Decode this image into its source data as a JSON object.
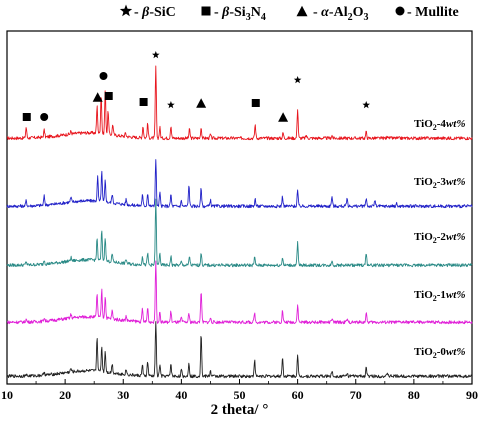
{
  "chart_data": {
    "type": "line",
    "xlabel": "2 theta/ °",
    "ylabel": "",
    "xlim": [
      10,
      90
    ],
    "x_ticks": [
      10,
      20,
      30,
      40,
      50,
      60,
      70,
      80,
      90
    ],
    "grid": false,
    "legend_position": "top",
    "legend": [
      {
        "symbol": "star",
        "prefix": "-",
        "greek": "β",
        "name": "-SiC"
      },
      {
        "symbol": "square",
        "prefix": "-",
        "greek": "β",
        "name": "-Si",
        "sub1": "3",
        "name2": "N",
        "sub2": "4"
      },
      {
        "symbol": "triangle",
        "prefix": "-",
        "greek": "α",
        "name": "-Al",
        "sub1": "2",
        "name2": "O",
        "sub2": "3"
      },
      {
        "symbol": "circle",
        "prefix": "-",
        "name": "Mullite"
      }
    ],
    "series": [
      {
        "name": "TiO2-4wt%",
        "label_main": "TiO",
        "label_sub": "2",
        "label_rest": "-4",
        "label_unit": "wt%",
        "color": "#e8161e",
        "baseline": 0.2,
        "noise": 0.35,
        "peaks": [
          [
            13.3,
            1.2
          ],
          [
            16.4,
            0.8
          ],
          [
            21.0,
            0.3
          ],
          [
            25.5,
            3.0
          ],
          [
            26.2,
            4.4
          ],
          [
            26.9,
            4.9
          ],
          [
            27.4,
            2.6
          ],
          [
            28.2,
            1.2
          ],
          [
            30.4,
            0.4
          ],
          [
            33.4,
            1.3
          ],
          [
            34.2,
            1.6
          ],
          [
            35.6,
            8.0
          ],
          [
            36.3,
            1.2
          ],
          [
            38.2,
            1.4
          ],
          [
            41.4,
            1.0
          ],
          [
            43.4,
            1.2
          ],
          [
            45.0,
            0.4
          ],
          [
            52.7,
            1.5
          ],
          [
            57.5,
            0.6
          ],
          [
            60.0,
            3.3
          ],
          [
            61.5,
            0.3
          ],
          [
            65.9,
            0.3
          ],
          [
            71.8,
            0.7
          ],
          [
            75.5,
            0.3
          ]
        ]
      },
      {
        "name": "TiO2-3wt%",
        "label_main": "TiO",
        "label_sub": "2",
        "label_rest": "-3",
        "label_unit": "wt%",
        "color": "#2121c8",
        "baseline": 0.2,
        "noise": 0.35,
        "peaks": [
          [
            13.3,
            0.6
          ],
          [
            16.4,
            1.0
          ],
          [
            21.0,
            0.5
          ],
          [
            25.6,
            2.7
          ],
          [
            26.3,
            3.3
          ],
          [
            26.9,
            2.4
          ],
          [
            28.1,
            1.0
          ],
          [
            30.5,
            0.6
          ],
          [
            33.3,
            1.2
          ],
          [
            34.2,
            1.5
          ],
          [
            35.6,
            5.2
          ],
          [
            36.3,
            1.5
          ],
          [
            38.2,
            1.3
          ],
          [
            40.0,
            0.6
          ],
          [
            41.3,
            2.4
          ],
          [
            43.4,
            2.0
          ],
          [
            45.0,
            0.7
          ],
          [
            52.7,
            0.8
          ],
          [
            57.4,
            1.1
          ],
          [
            60.0,
            1.8
          ],
          [
            65.9,
            1.1
          ],
          [
            68.5,
            0.9
          ],
          [
            71.8,
            0.9
          ],
          [
            73.3,
            0.7
          ],
          [
            77.0,
            0.3
          ]
        ]
      },
      {
        "name": "TiO2-2wt%",
        "label_main": "TiO",
        "label_sub": "2",
        "label_rest": "-2",
        "label_unit": "wt%",
        "color": "#2a8a86",
        "baseline": 0.2,
        "noise": 0.35,
        "peaks": [
          [
            13.3,
            0.4
          ],
          [
            16.4,
            0.5
          ],
          [
            21.0,
            0.4
          ],
          [
            25.5,
            2.4
          ],
          [
            26.3,
            3.4
          ],
          [
            26.9,
            2.7
          ],
          [
            28.1,
            0.9
          ],
          [
            30.5,
            0.5
          ],
          [
            33.3,
            1.0
          ],
          [
            34.2,
            1.3
          ],
          [
            35.6,
            7.4
          ],
          [
            36.3,
            1.3
          ],
          [
            38.2,
            1.0
          ],
          [
            40.0,
            0.4
          ],
          [
            41.4,
            1.0
          ],
          [
            43.4,
            1.4
          ],
          [
            52.6,
            0.9
          ],
          [
            57.4,
            0.9
          ],
          [
            60.0,
            2.5
          ],
          [
            65.9,
            0.5
          ],
          [
            71.8,
            1.4
          ]
        ]
      },
      {
        "name": "TiO2-1wt%",
        "label_main": "TiO",
        "label_sub": "2",
        "label_rest": "-1",
        "label_unit": "wt%",
        "color": "#e020d8",
        "baseline": 0.2,
        "noise": 0.35,
        "peaks": [
          [
            13.3,
            0.3
          ],
          [
            16.4,
            0.4
          ],
          [
            21.0,
            0.4
          ],
          [
            25.5,
            2.6
          ],
          [
            26.3,
            3.1
          ],
          [
            26.9,
            2.4
          ],
          [
            28.1,
            0.9
          ],
          [
            30.5,
            0.5
          ],
          [
            33.3,
            1.4
          ],
          [
            34.2,
            1.6
          ],
          [
            35.6,
            6.9
          ],
          [
            36.3,
            1.1
          ],
          [
            38.2,
            1.2
          ],
          [
            40.0,
            0.5
          ],
          [
            41.3,
            1.0
          ],
          [
            43.4,
            3.6
          ],
          [
            45.0,
            0.5
          ],
          [
            52.6,
            1.0
          ],
          [
            57.4,
            1.3
          ],
          [
            60.0,
            2.0
          ],
          [
            65.9,
            0.4
          ],
          [
            68.5,
            0.3
          ],
          [
            71.8,
            1.0
          ]
        ]
      },
      {
        "name": "TiO2-0wt%",
        "label_main": "TiO",
        "label_sub": "2",
        "label_rest": "-0",
        "label_unit": "wt%",
        "color": "#202020",
        "baseline": 0.2,
        "noise": 0.35,
        "peaks": [
          [
            13.3,
            0.2
          ],
          [
            16.4,
            0.4
          ],
          [
            21.0,
            0.4
          ],
          [
            25.5,
            3.8
          ],
          [
            26.3,
            2.8
          ],
          [
            26.9,
            2.3
          ],
          [
            28.1,
            1.0
          ],
          [
            30.5,
            0.6
          ],
          [
            33.3,
            1.2
          ],
          [
            34.2,
            1.6
          ],
          [
            35.6,
            6.2
          ],
          [
            36.3,
            1.3
          ],
          [
            38.2,
            1.4
          ],
          [
            40.0,
            0.7
          ],
          [
            41.3,
            1.6
          ],
          [
            43.4,
            4.8
          ],
          [
            45.0,
            0.6
          ],
          [
            52.6,
            1.8
          ],
          [
            57.4,
            2.1
          ],
          [
            60.0,
            2.3
          ],
          [
            65.9,
            0.6
          ],
          [
            68.5,
            0.4
          ],
          [
            71.8,
            1.0
          ],
          [
            75.5,
            0.3
          ]
        ]
      }
    ],
    "phase_markers": [
      {
        "symbol": "square",
        "x": 13.4
      },
      {
        "symbol": "circle",
        "x": 16.4
      },
      {
        "symbol": "triangle",
        "x": 25.6
      },
      {
        "symbol": "circle",
        "x": 26.6,
        "raise": true
      },
      {
        "symbol": "square",
        "x": 27.5
      },
      {
        "symbol": "square",
        "x": 33.5
      },
      {
        "symbol": "star",
        "x": 35.6,
        "raise": true
      },
      {
        "symbol": "star",
        "x": 38.2
      },
      {
        "symbol": "triangle",
        "x": 43.4
      },
      {
        "symbol": "square",
        "x": 52.8
      },
      {
        "symbol": "triangle",
        "x": 57.5
      },
      {
        "symbol": "star",
        "x": 60.0,
        "raise": true
      },
      {
        "symbol": "star",
        "x": 71.8
      }
    ]
  }
}
